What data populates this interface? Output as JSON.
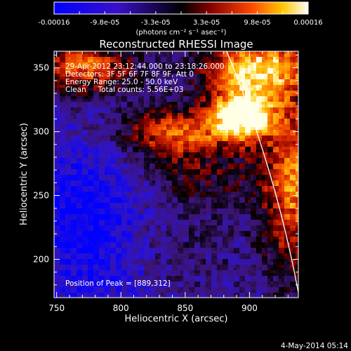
{
  "chart_data": {
    "type": "heatmap",
    "title": "Reconstructed RHESSI Image",
    "xlabel": "Heliocentric X (arcsec)",
    "ylabel": "Heliocentric Y (arcsec)",
    "xlim": [
      748,
      938
    ],
    "ylim": [
      170,
      363
    ],
    "x_ticks": [
      750,
      800,
      850,
      900
    ],
    "y_ticks": [
      200,
      250,
      300,
      350
    ],
    "x_tick_labels": [
      "750",
      "800",
      "850",
      "900"
    ],
    "y_tick_labels": [
      "200",
      "250",
      "300",
      "350"
    ],
    "colorbar": {
      "min": -0.00016,
      "max": 0.00016,
      "tick_labels": [
        "-0.00016",
        "-9.8e-05",
        "-3.3e-05",
        "3.3e-05",
        "9.8e-05",
        "0.00016"
      ],
      "units_label": "(photons cm⁻² s⁻¹ asec⁻²)"
    },
    "annotations": [
      "29-Apr-2012 23:12:44.000 to 23:18:26.000",
      "Detectors: 3F 5F 6F 7F 8F 9F, Att 0",
      "Energy Range: 25.0 - 50.0 keV",
      "Clean     Total counts: 5.56E+03"
    ],
    "peak_label": "Position of Peak = [889,312]",
    "peak_position": [
      889,
      312
    ],
    "limb_present": true,
    "footer_date": "4-May-2014 05:14"
  }
}
